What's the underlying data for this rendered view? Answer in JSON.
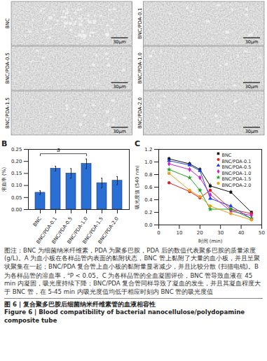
{
  "panel_a": {
    "images": [
      {
        "label": "BNC",
        "scale_bar": "30μm"
      },
      {
        "label": "BNC/PDA-0.1",
        "scale_bar": "30μm"
      },
      {
        "label": "BNC/PDA-0.5",
        "scale_bar": "30μm"
      },
      {
        "label": "BNC/PDA-1.0",
        "scale_bar": "30μm"
      },
      {
        "label": "BNC/PDA-1.5",
        "scale_bar": "30μm"
      },
      {
        "label": "BNC/PDA-2.0",
        "scale_bar": "30μm"
      }
    ]
  },
  "chart_data": [
    {
      "panel": "B",
      "type": "bar",
      "y_label": "溶血率 (%)",
      "categories": [
        "BNC",
        "BNC/PDA-0.1",
        "BNC/PDA-0.5",
        "BNC/PDA-1.0",
        "BNC/PDA-1.5",
        "BNC/PDA-2.0"
      ],
      "values": [
        0.07,
        0.17,
        0.15,
        0.19,
        0.11,
        0.12
      ],
      "errors": [
        0.008,
        0.01,
        0.02,
        0.02,
        0.02,
        0.017
      ],
      "color": "#2a6fd4",
      "ylim": [
        0,
        0.25
      ],
      "yticks": [
        {
          "value": 0,
          "label": "0.00"
        },
        {
          "value": 0.05,
          "label": "0.05"
        },
        {
          "value": 0.1,
          "label": "0.10"
        },
        {
          "value": 0.15,
          "label": "0.15"
        },
        {
          "value": 0.2,
          "label": "0.20"
        },
        {
          "value": 0.25,
          "label": "0.25"
        }
      ],
      "annotations": [
        {
          "text": "a",
          "from": "BNC",
          "to": "BNC/PDA-1.0",
          "y": 0.232
        }
      ]
    },
    {
      "panel": "C",
      "type": "line",
      "x_label": "时间 (min)",
      "y_label": "吸光度值 (540 nm)",
      "x": [
        5,
        15,
        20,
        25,
        35,
        45
      ],
      "series": [
        {
          "name": "BNC",
          "color": "#111111",
          "marker": "square",
          "values": [
            1.05,
            0.97,
            0.88,
            0.62,
            0.52,
            0.2
          ],
          "errors": [
            0.03,
            0.03,
            0.03,
            0.04,
            0.03,
            0.02
          ]
        },
        {
          "name": "BNC/PDA-0.1",
          "color": "#e02020",
          "marker": "circle",
          "values": [
            0.67,
            0.53,
            0.43,
            0.55,
            0.25,
            0.18
          ]
        },
        {
          "name": "BNC/PDA-0.5",
          "color": "#2040e0",
          "marker": "triangle",
          "values": [
            1.02,
            0.95,
            0.86,
            0.42,
            0.3,
            0.1
          ]
        },
        {
          "name": "BNC/PDA-1.0",
          "color": "#d020c8",
          "marker": "diamond",
          "values": [
            0.97,
            0.88,
            0.75,
            0.48,
            0.22,
            0.15
          ]
        },
        {
          "name": "BNC/PDA-1.5",
          "color": "#20a020",
          "marker": "star",
          "values": [
            0.88,
            0.75,
            0.55,
            0.25,
            0.25,
            0.1
          ]
        },
        {
          "name": "BNC/PDA-2.0",
          "color": "#e8a020",
          "marker": "hexagon",
          "values": [
            0.82,
            0.55,
            0.45,
            0.3,
            0.18,
            0.08
          ]
        }
      ],
      "xlim": [
        0,
        50
      ],
      "xticks": [
        0,
        10,
        20,
        30,
        40,
        50
      ],
      "ylim": [
        0,
        1.2
      ],
      "yticks": [
        {
          "value": 0,
          "label": "0.0"
        },
        0.2,
        0.4,
        0.6,
        0.8,
        {
          "value": 1,
          "label": "1.0"
        },
        1.2
      ],
      "legend": "top-right"
    }
  ],
  "caption": {
    "note_before": "图注：BNC 为细菌纳米纤维素，PDA 为聚多巴胺，PDA 后的数值代表聚多巴胺的质量浓度 (g/L)。A 为血小板在各样品管内表面的黏附状态，BNC 管上黏附了大量的血小板，并且呈聚状聚集在一起；BNC/PDA 复合管上血小板的黏附量显著减少，并且比较分散 (扫描电镜)。B 为各样品管的溶血率，",
    "superscript": "a",
    "note_after": "P < 0.05。C 为各样品管的全血凝固评价，BNC 管导致血液在 45 min 内凝固，吸光度持续下降；BNC/PDA 复合管同样导致了凝血的发生，并且其凝血程度大于 BNC 管，在 5-45 min 内吸光度值均低于相应时刻内 BNC 管的吸光度值",
    "title_zh": "图 6 | 复合聚多巴胺后细菌纳米纤维素管的血液相容性",
    "title_en": "Figure 6 | Blood compatibility of bacterial nanocellulose/polydopamine composite tube"
  }
}
